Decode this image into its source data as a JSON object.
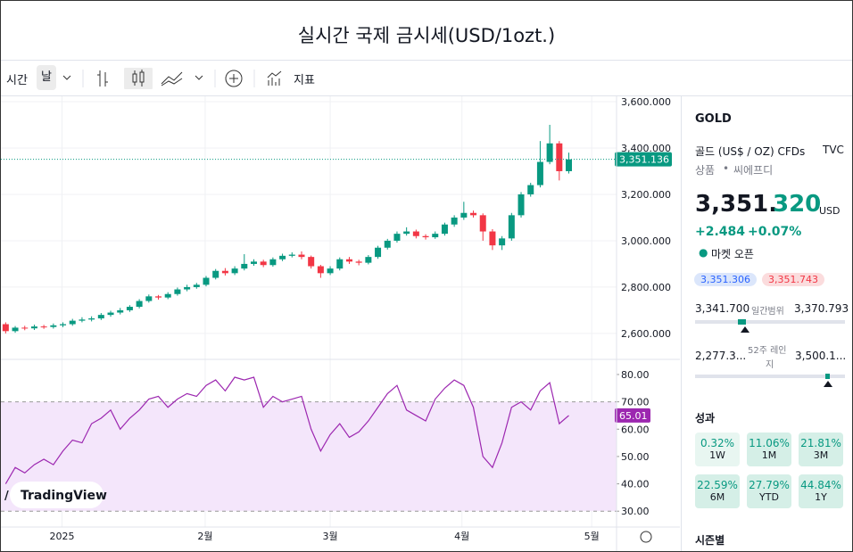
{
  "header": {
    "title": "실시간 국제 금시세(USD/1ozt.)"
  },
  "toolbar": {
    "interval_prefix": "시간",
    "interval": "날",
    "indicators": "지표"
  },
  "chart_data": {
    "type": "candlestick",
    "xlim": [
      -0.5,
      64
    ],
    "xticks": [
      {
        "value": 5.9,
        "label": "2025"
      },
      {
        "value": 20.9,
        "label": "2월"
      },
      {
        "value": 34,
        "label": "3월"
      },
      {
        "value": 47.8,
        "label": "4월"
      },
      {
        "value": 61.4,
        "label": "5월"
      }
    ],
    "ylim": [
      2492,
      3623
    ],
    "yticks": [
      {
        "value": 2600,
        "label": "2,600.000"
      },
      {
        "value": 2800,
        "label": "2,800.000"
      },
      {
        "value": 3000,
        "label": "3,000.000"
      },
      {
        "value": 3200,
        "label": "3,200.000"
      },
      {
        "value": 3400,
        "label": "3,400.000"
      },
      {
        "value": 3600,
        "label": "3,600.000"
      }
    ],
    "grid": true,
    "up_color": "#089981",
    "down_color": "#f23645",
    "open": [
      2640,
      2610,
      2625,
      2622,
      2630,
      2628,
      2635,
      2640,
      2655,
      2660,
      2665,
      2680,
      2690,
      2700,
      2715,
      2740,
      2760,
      2755,
      2770,
      2790,
      2800,
      2810,
      2840,
      2870,
      2860,
      2880,
      2900,
      2910,
      2895,
      2920,
      2935,
      2940,
      2930,
      2890,
      2860,
      2880,
      2920,
      2910,
      2905,
      2930,
      2970,
      3000,
      3030,
      3040,
      3020,
      3015,
      3030,
      3070,
      3100,
      3120,
      3110,
      3040,
      2980,
      3010,
      3110,
      3200,
      3240,
      3340,
      3420,
      3300
    ],
    "high": [
      2648,
      2632,
      2633,
      2638,
      2637,
      2643,
      2648,
      2663,
      2670,
      2674,
      2688,
      2698,
      2710,
      2722,
      2748,
      2768,
      2766,
      2778,
      2798,
      2810,
      2818,
      2848,
      2878,
      2882,
      2890,
      2942,
      2920,
      2918,
      2928,
      2944,
      2950,
      2954,
      2936,
      2896,
      2890,
      2928,
      2930,
      2918,
      2938,
      2978,
      3008,
      3040,
      3058,
      3048,
      3028,
      3040,
      3078,
      3110,
      3168,
      3130,
      3118,
      3050,
      3020,
      3120,
      3210,
      3250,
      3430,
      3500,
      3430,
      3380
    ],
    "low": [
      2600,
      2603,
      2614,
      2615,
      2620,
      2621,
      2627,
      2633,
      2648,
      2652,
      2658,
      2672,
      2682,
      2693,
      2708,
      2733,
      2746,
      2748,
      2763,
      2782,
      2793,
      2803,
      2833,
      2850,
      2852,
      2872,
      2892,
      2886,
      2888,
      2912,
      2928,
      2920,
      2880,
      2840,
      2852,
      2872,
      2900,
      2894,
      2898,
      2922,
      2962,
      2992,
      3022,
      3010,
      3005,
      3008,
      3022,
      3060,
      3090,
      3100,
      3000,
      2960,
      2960,
      3000,
      3100,
      3190,
      3230,
      3330,
      3260,
      3290
    ],
    "close": [
      2610,
      2625,
      2622,
      2630,
      2628,
      2635,
      2640,
      2655,
      2660,
      2665,
      2680,
      2690,
      2700,
      2715,
      2740,
      2760,
      2755,
      2770,
      2790,
      2800,
      2810,
      2840,
      2870,
      2860,
      2880,
      2900,
      2910,
      2895,
      2920,
      2935,
      2940,
      2930,
      2890,
      2860,
      2880,
      2920,
      2910,
      2905,
      2930,
      2970,
      3000,
      3030,
      3040,
      3020,
      3015,
      3030,
      3070,
      3100,
      3120,
      3110,
      3040,
      2980,
      3010,
      3110,
      3200,
      3240,
      3340,
      3420,
      3300,
      3351.136
    ],
    "last_close_label": "3,351.136",
    "rsi": {
      "color": "#9c27b0",
      "ylim": [
        24.2,
        85.2
      ],
      "yticks": [
        {
          "value": 30,
          "label": "30.00"
        },
        {
          "value": 40,
          "label": "40.00"
        },
        {
          "value": 50,
          "label": "50.00"
        },
        {
          "value": 60,
          "label": "60.00"
        },
        {
          "value": 70,
          "label": "70.00"
        },
        {
          "value": 80,
          "label": "80.00"
        }
      ],
      "band": [
        30,
        70
      ],
      "values": [
        40,
        46,
        44,
        47,
        49,
        47,
        52,
        56,
        55,
        62,
        64,
        67,
        60,
        64,
        67,
        71,
        72,
        68,
        71,
        73,
        72,
        76,
        78,
        74,
        79,
        78,
        79,
        68,
        72,
        70,
        71,
        72,
        60,
        52,
        58,
        62,
        57,
        59,
        63,
        68,
        73,
        76,
        67,
        65,
        63,
        71,
        75,
        78,
        76,
        68,
        50,
        46,
        55,
        68,
        70,
        67,
        74,
        77,
        62,
        65.01
      ]
    }
  },
  "watermark": "TradingView",
  "sidebar": {
    "symbol": "GOLD",
    "name": "골드 (US$ / OZ) CFDs",
    "exchange": "TVC",
    "category": "상품",
    "subcategory": "씨에프디",
    "price_main": "3,351.",
    "price_tail": "320",
    "currency": "USD",
    "change": "+2.484",
    "change_pct": "+0.07%",
    "status": "마켓 오픈",
    "bid": "3,351.306",
    "ask": "3,351.743",
    "day_low": "3,341.700",
    "day_range_label": "일간범위",
    "day_high": "3,370.793",
    "year_low": "2,277.3...",
    "year_range_label_1": "52주 레인",
    "year_range_label_2": "지",
    "year_high": "3,500.1...",
    "performance_title": "성과",
    "performance": [
      {
        "value": "0.32%",
        "period": "1W"
      },
      {
        "value": "11.06%",
        "period": "1M"
      },
      {
        "value": "21.81%",
        "period": "3M"
      },
      {
        "value": "22.59%",
        "period": "6M"
      },
      {
        "value": "27.79%",
        "period": "YTD"
      },
      {
        "value": "44.84%",
        "period": "1Y"
      }
    ],
    "seasonal_title": "시즌별"
  }
}
